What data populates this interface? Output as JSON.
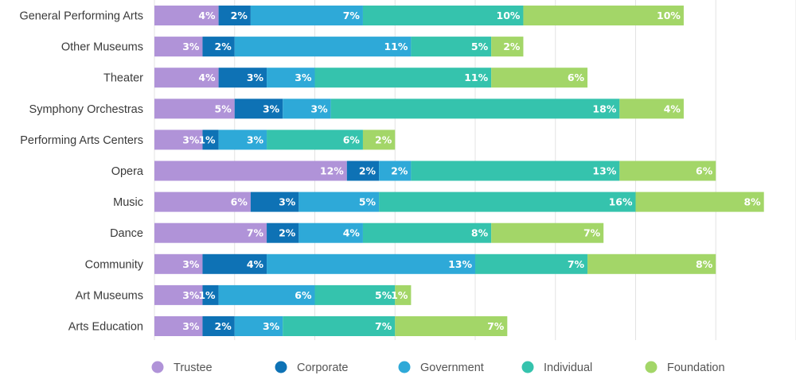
{
  "chart_data": {
    "type": "bar",
    "orientation": "horizontal",
    "stacked": true,
    "categories": [
      "General Performing Arts",
      "Other Museums",
      "Theater",
      "Symphony Orchestras",
      "Performing Arts Centers",
      "Opera",
      "Music",
      "Dance",
      "Community",
      "Art Museums",
      "Arts Education"
    ],
    "series": [
      {
        "name": "Trustee",
        "color": "#b093d8",
        "values": [
          4,
          3,
          4,
          5,
          3,
          12,
          6,
          7,
          3,
          3,
          3
        ]
      },
      {
        "name": "Corporate",
        "color": "#0e72b5",
        "values": [
          2,
          2,
          3,
          3,
          1,
          2,
          3,
          2,
          4,
          1,
          2
        ]
      },
      {
        "name": "Government",
        "color": "#2ea9d8",
        "values": [
          7,
          11,
          3,
          3,
          3,
          2,
          5,
          4,
          13,
          6,
          3
        ]
      },
      {
        "name": "Individual",
        "color": "#35c3ad",
        "values": [
          10,
          5,
          11,
          18,
          6,
          13,
          16,
          8,
          7,
          5,
          7
        ]
      },
      {
        "name": "Foundation",
        "color": "#a3d668",
        "values": [
          10,
          2,
          6,
          4,
          2,
          6,
          8,
          7,
          8,
          1,
          7
        ]
      }
    ],
    "value_suffix": "%",
    "xlim": [
      0,
      40
    ],
    "grid": true,
    "legend_position": "bottom"
  }
}
